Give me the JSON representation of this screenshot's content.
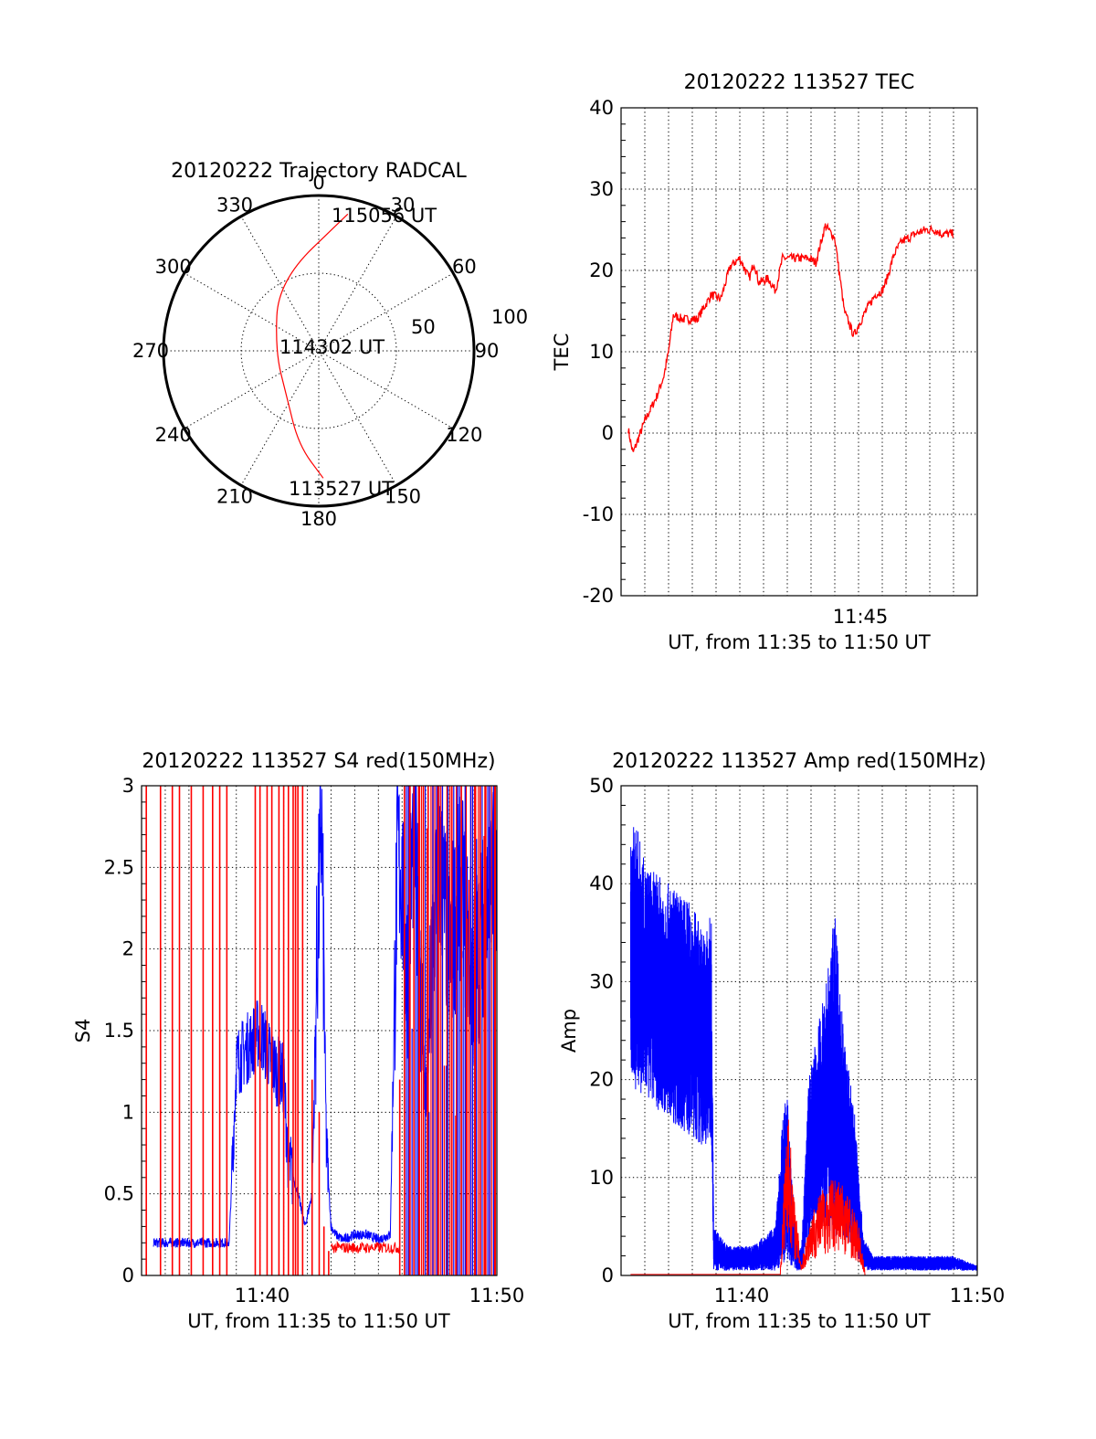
{
  "colors": {
    "red_channel": "#ff0000",
    "blue_channel": "#0000ff",
    "axes": "#000000",
    "background": "#ffffff"
  },
  "chart_data": [
    {
      "type": "scatter",
      "subtype": "polar-trajectory",
      "title": "20120222 Trajectory RADCAL",
      "angle_labels": [
        "0",
        "30",
        "60",
        "90",
        "120",
        "150",
        "180",
        "210",
        "240",
        "270",
        "300",
        "330"
      ],
      "radial_labels": [
        "50",
        "100"
      ],
      "rlim": [
        0,
        100
      ],
      "trajectory": [
        {
          "az": 178,
          "r": 82
        },
        {
          "az": 192,
          "r": 62
        },
        {
          "az": 215,
          "r": 36
        },
        {
          "az": 270,
          "r": 28
        },
        {
          "az": 330,
          "r": 52
        },
        {
          "az": 12,
          "r": 90
        }
      ],
      "annotations": [
        {
          "text": "115056 UT",
          "az": 12,
          "r": 90
        },
        {
          "text": "114302 UT",
          "az": 0,
          "r": 0
        },
        {
          "text": "113527 UT",
          "az": 178,
          "r": 82
        }
      ]
    },
    {
      "type": "line",
      "title": "20120222 113527 TEC",
      "xlabel": "UT, from 11:35 to 11:50 UT",
      "ylabel": "TEC",
      "xlim": [
        "11:35",
        "11:50"
      ],
      "ylim": [
        -20,
        40
      ],
      "yticks": [
        "40",
        "30",
        "20",
        "10",
        "0",
        "-10",
        "-20"
      ],
      "xticks": [
        "11:45"
      ],
      "grid": true,
      "series": [
        {
          "color": "#ff0000",
          "x_minutes": [
            0.3,
            0.5,
            1.0,
            1.5,
            1.8,
            2.0,
            2.2,
            2.6,
            3.2,
            3.8,
            4.2,
            4.6,
            5.0,
            5.4,
            5.6,
            5.8,
            6.2,
            6.5,
            6.8,
            7.2,
            7.6,
            7.9,
            8.2,
            8.6,
            9.0,
            9.4,
            9.8,
            10.3,
            10.7,
            11.0,
            11.2,
            11.5,
            11.8,
            12.1,
            12.4,
            12.8,
            13.2,
            13.5,
            13.8,
            14.0
          ],
          "values": [
            0.5,
            -2.5,
            1.5,
            4.5,
            7.0,
            10.0,
            14.5,
            14.0,
            14.0,
            17.0,
            16.5,
            20.5,
            21.5,
            19.0,
            21.0,
            18.5,
            19.0,
            17.5,
            21.5,
            21.5,
            21.5,
            21.5,
            21.0,
            25.5,
            24.0,
            15.0,
            12.0,
            15.0,
            17.0,
            17.5,
            19.0,
            22.0,
            23.5,
            24.0,
            24.5,
            25.0,
            25.0,
            24.5,
            24.5,
            24.5
          ]
        }
      ]
    },
    {
      "type": "line",
      "title": "20120222 113527 S4 red(150MHz)",
      "xlabel": "UT, from 11:35 to 11:50 UT",
      "ylabel": "S4",
      "xlim": [
        "11:35",
        "11:50"
      ],
      "ylim": [
        0,
        3
      ],
      "yticks": [
        "3",
        "2.5",
        "2",
        "1.5",
        "1",
        "0.5",
        "0"
      ],
      "xticks": [
        "11:40",
        "11:50"
      ],
      "grid": true,
      "series": [
        {
          "color": "#0000ff",
          "x_minutes": [
            0.5,
            1.0,
            2.0,
            3.0,
            3.5,
            3.7,
            4.0,
            4.5,
            5.0,
            5.5,
            6.0,
            6.2,
            6.6,
            6.9,
            7.2,
            7.4,
            7.6,
            7.8,
            8.0,
            8.2,
            8.5,
            9.0,
            9.5,
            10.0,
            10.5,
            10.8,
            11.0,
            11.2,
            11.5,
            12.0,
            12.5,
            13.0,
            13.5,
            14.0,
            14.5,
            15.0
          ],
          "values": [
            0.2,
            0.2,
            0.2,
            0.2,
            0.2,
            0.2,
            1.3,
            1.4,
            1.5,
            1.3,
            1.2,
            0.7,
            0.5,
            0.3,
            0.5,
            1.9,
            2.8,
            0.8,
            0.3,
            0.25,
            0.22,
            0.25,
            0.25,
            0.22,
            0.25,
            2.6,
            2.4,
            1.8,
            2.8,
            1.0,
            2.6,
            2.0,
            2.4,
            1.8,
            2.2,
            2.6
          ]
        },
        {
          "color": "#ff0000",
          "x_minutes": [
            0.2,
            0.8,
            1.3,
            1.6,
            2.1,
            2.6,
            3.0,
            3.3,
            3.6,
            4.8,
            5.0,
            5.3,
            5.5,
            5.8,
            6.0,
            6.2,
            6.4,
            6.5,
            6.6,
            6.8,
            7.2,
            7.5,
            7.7,
            7.9,
            10.9,
            11.1,
            11.3,
            11.5,
            11.7,
            11.9,
            12.1,
            12.3,
            12.5,
            12.7,
            12.9,
            13.1,
            13.3,
            13.5,
            13.7,
            13.9,
            14.1,
            14.3,
            14.5,
            14.7,
            14.9
          ],
          "values": [
            3,
            3,
            3,
            3,
            3,
            3,
            3,
            3,
            3,
            3,
            3,
            3,
            3,
            3,
            3,
            3,
            3,
            3,
            3,
            3,
            1.2,
            1.0,
            0.3,
            0.15,
            1.2,
            3,
            3,
            3,
            3,
            3,
            3,
            3,
            3,
            3,
            3,
            3,
            3,
            3,
            3,
            3,
            3,
            3,
            3,
            3,
            3
          ]
        }
      ]
    },
    {
      "type": "line",
      "title": "20120222 113527 Amp red(150MHz)",
      "xlabel": "UT, from 11:35 to 11:50 UT",
      "ylabel": "Amp",
      "xlim": [
        "11:35",
        "11:50"
      ],
      "ylim": [
        0,
        50
      ],
      "yticks": [
        "50",
        "40",
        "30",
        "20",
        "10",
        "0"
      ],
      "xticks": [
        "11:40",
        "11:50"
      ],
      "grid": true,
      "series": [
        {
          "color": "#0000ff",
          "x_minutes": [
            0.4,
            0.6,
            1.0,
            1.5,
            2.0,
            2.5,
            3.0,
            3.5,
            3.8,
            3.9,
            4.5,
            5.0,
            5.5,
            6.0,
            6.5,
            6.8,
            7.0,
            7.2,
            7.4,
            7.6,
            7.9,
            8.2,
            8.6,
            9.0,
            9.4,
            9.8,
            10.2,
            10.6,
            11.0,
            12.0,
            13.0,
            14.0,
            15.0
          ],
          "upper": [
            44,
            47,
            42,
            41,
            40,
            39,
            38,
            35,
            37,
            5,
            3,
            3,
            3,
            4,
            5,
            16,
            19,
            10,
            3,
            3,
            20,
            24,
            30,
            37,
            24,
            18,
            4,
            2,
            2,
            2,
            2,
            2,
            1
          ],
          "lower": [
            20,
            19,
            18,
            17,
            16,
            15,
            14,
            13,
            14,
            0.5,
            0.5,
            0.5,
            0.5,
            0.5,
            0.5,
            1,
            1,
            1,
            0.5,
            0.5,
            3,
            4,
            5,
            4,
            4,
            3,
            0.5,
            0.5,
            0.5,
            0.5,
            0.5,
            0.5,
            0.5
          ]
        },
        {
          "color": "#ff0000",
          "x_minutes": [
            0.4,
            3.8,
            6.7,
            7.0,
            7.3,
            7.6,
            8.0,
            8.5,
            9.0,
            9.5,
            10.0,
            10.3
          ],
          "values": [
            0,
            0,
            0,
            14,
            6,
            1,
            5,
            7,
            8,
            7,
            4,
            0
          ]
        }
      ]
    }
  ]
}
